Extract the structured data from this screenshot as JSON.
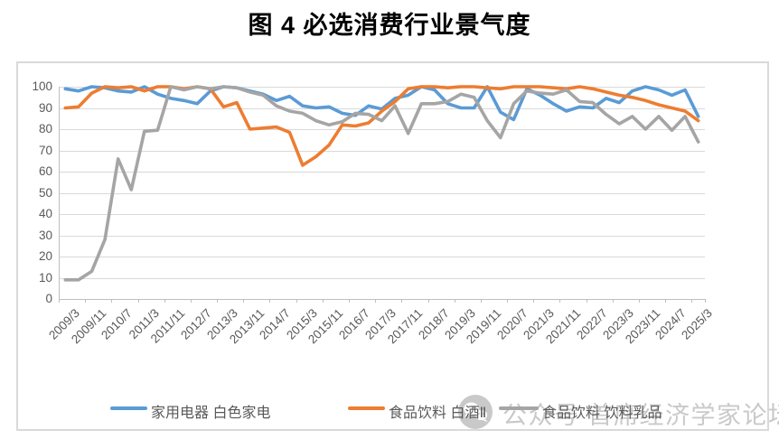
{
  "title": "图 4  必选消费行业景气度",
  "watermark": {
    "icon": "wechat-icon",
    "text": "公众号 首席经济学家论坛"
  },
  "chart_data": {
    "type": "line",
    "title": "图 4  必选消费行业景气度",
    "xlabel": "",
    "ylabel": "",
    "ylim": [
      0,
      100
    ],
    "y_ticks": [
      0,
      10,
      20,
      30,
      40,
      50,
      60,
      70,
      80,
      90,
      100
    ],
    "grid": true,
    "legend_position": "bottom",
    "categories": [
      "2009/3",
      "2009/7",
      "2009/11",
      "2010/3",
      "2010/7",
      "2010/11",
      "2011/3",
      "2011/7",
      "2011/11",
      "2012/3",
      "2012/7",
      "2012/11",
      "2013/3",
      "2013/7",
      "2013/11",
      "2014/3",
      "2014/7",
      "2014/11",
      "2015/3",
      "2015/7",
      "2015/11",
      "2016/3",
      "2016/7",
      "2016/11",
      "2017/3",
      "2017/7",
      "2017/11",
      "2018/3",
      "2018/7",
      "2018/11",
      "2019/3",
      "2019/7",
      "2019/11",
      "2020/3",
      "2020/7",
      "2020/11",
      "2021/3",
      "2021/7",
      "2021/11",
      "2022/3",
      "2022/7",
      "2022/11",
      "2023/3",
      "2023/7",
      "2023/11",
      "2024/3",
      "2024/7",
      "2024/11",
      "2025/3"
    ],
    "x_tick_labels": [
      "2009/3",
      "2009/11",
      "2010/7",
      "2011/3",
      "2011/11",
      "2012/7",
      "2013/3",
      "2013/11",
      "2014/7",
      "2015/3",
      "2015/11",
      "2016/7",
      "2017/3",
      "2017/11",
      "2018/7",
      "2019/3",
      "2019/11",
      "2020/7",
      "2021/3",
      "2021/11",
      "2022/7",
      "2023/3",
      "2023/11",
      "2024/7",
      "2025/3"
    ],
    "series": [
      {
        "name": "家用电器 白色家电",
        "color": "#5B9BD5",
        "values": [
          99,
          98,
          100,
          99.5,
          98,
          97.5,
          100,
          96.5,
          94.5,
          93.5,
          92,
          98,
          100,
          99.5,
          98,
          96.5,
          93.5,
          95.5,
          91,
          90,
          90.5,
          87.5,
          86.5,
          91,
          89.5,
          94.5,
          96,
          100,
          98.5,
          92,
          90,
          90,
          100,
          88,
          84.5,
          99,
          96,
          92,
          88.5,
          90.5,
          90,
          94.5,
          92.5,
          98,
          100,
          98.5,
          96,
          98.5,
          86
        ]
      },
      {
        "name": "食品饮料 白酒Ⅱ",
        "color": "#ED7D31",
        "values": [
          90,
          90.5,
          97,
          100,
          99.5,
          100,
          98,
          100,
          100,
          99,
          100,
          99,
          90.5,
          92.5,
          80,
          80.5,
          81,
          78.5,
          63,
          67,
          72.5,
          82,
          81.5,
          83,
          88.5,
          93,
          99,
          100,
          100,
          99.5,
          100,
          100,
          99.5,
          99,
          100,
          100,
          100,
          99.5,
          99,
          100,
          99,
          97.5,
          96,
          95,
          93.5,
          91.5,
          90,
          88.5,
          84
        ]
      },
      {
        "name": "食品饮料 饮料乳品",
        "color": "#A5A5A5",
        "values": [
          9,
          9,
          13,
          28,
          66,
          51.5,
          79,
          79.5,
          100,
          98.5,
          100,
          99,
          100,
          99.5,
          97.5,
          96,
          91,
          88.5,
          87.5,
          84,
          82,
          83.5,
          87.5,
          87,
          84,
          91,
          78,
          92,
          92,
          93,
          96.5,
          95,
          84,
          76,
          92,
          98,
          97,
          96.5,
          98.5,
          93,
          92.5,
          87,
          82.5,
          86,
          80,
          86,
          79.5,
          86,
          74
        ]
      }
    ],
    "colors": {
      "grid": "#d9d9d9",
      "axis": "#bfbfbf",
      "axis_text": "#595959",
      "frame_border": "#d9d9d9",
      "watermark": "#c9c9c9"
    }
  }
}
